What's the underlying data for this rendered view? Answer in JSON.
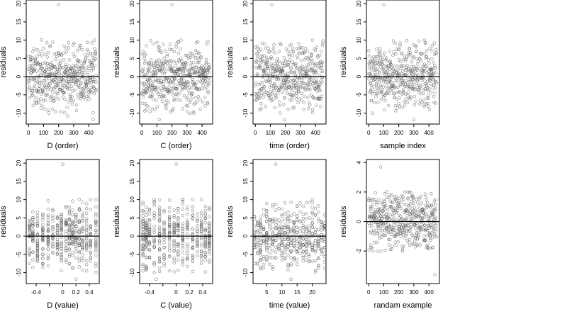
{
  "chart_data": [
    {
      "type": "scatter",
      "xlabel": "D (order)",
      "ylabel": "residuals",
      "xlim": [
        -15,
        470
      ],
      "ylim": [
        -13,
        21
      ],
      "xticks": [
        0,
        100,
        200,
        300,
        400
      ],
      "yticks": [
        -10,
        -5,
        0,
        5,
        10,
        15,
        20
      ],
      "hline": 0,
      "grid": false,
      "n_points": 460,
      "outliers": [
        {
          "x": 200,
          "y": 19.7
        },
        {
          "x": 430,
          "y": -11.8
        },
        {
          "x": 260,
          "y": -10.8
        }
      ],
      "noise_sd": 4.3,
      "seed": 11
    },
    {
      "type": "scatter",
      "xlabel": "C (order)",
      "ylabel": "residuals",
      "xlim": [
        -15,
        470
      ],
      "ylim": [
        -13,
        21
      ],
      "xticks": [
        0,
        100,
        200,
        300,
        400
      ],
      "yticks": [
        -10,
        -5,
        0,
        5,
        10,
        15,
        20
      ],
      "hline": 0,
      "grid": false,
      "n_points": 460,
      "outliers": [
        {
          "x": 200,
          "y": 19.7
        },
        {
          "x": 115,
          "y": -11.8
        },
        {
          "x": 260,
          "y": 10.0
        }
      ],
      "noise_sd": 4.3,
      "seed": 23
    },
    {
      "type": "scatter",
      "xlabel": "time (order)",
      "ylabel": "residuals",
      "xlim": [
        -15,
        470
      ],
      "ylim": [
        -13,
        21
      ],
      "xticks": [
        0,
        100,
        200,
        300,
        400
      ],
      "yticks": [
        -10,
        -5,
        0,
        5,
        10,
        15,
        20
      ],
      "hline": 0,
      "grid": false,
      "n_points": 460,
      "outliers": [
        {
          "x": 110,
          "y": 19.7
        },
        {
          "x": 195,
          "y": -11.8
        },
        {
          "x": 380,
          "y": 10.0
        }
      ],
      "noise_sd": 4.3,
      "seed": 37
    },
    {
      "type": "scatter",
      "xlabel": "sample index",
      "ylabel": "residuals",
      "xlim": [
        -15,
        470
      ],
      "ylim": [
        -13,
        21
      ],
      "xticks": [
        0,
        100,
        200,
        300,
        400
      ],
      "yticks": [
        -10,
        -5,
        0,
        5,
        10,
        15,
        20
      ],
      "hline": 0,
      "grid": false,
      "n_points": 460,
      "outliers": [
        {
          "x": 100,
          "y": 19.7
        },
        {
          "x": 300,
          "y": -11.8
        },
        {
          "x": 370,
          "y": 10.0
        }
      ],
      "noise_sd": 4.3,
      "seed": 41
    },
    {
      "type": "scatter",
      "xlabel": "D (value)",
      "ylabel": "residuals",
      "xlim": [
        -0.55,
        0.55
      ],
      "ylim": [
        -13,
        21
      ],
      "xticks": [
        -0.4,
        -0.2,
        0.0,
        0.2,
        0.4
      ],
      "xticks_labeled": [
        -0.4,
        0.0,
        0.2,
        0.4
      ],
      "yticks": [
        -10,
        -5,
        0,
        5,
        10,
        15,
        20
      ],
      "hline": 0,
      "grid": false,
      "n_points": 460,
      "x_levels": [
        -0.5,
        -0.45,
        -0.38,
        -0.3,
        -0.22,
        -0.15,
        -0.08,
        -0.02,
        0.05,
        0.1,
        0.15,
        0.2,
        0.25,
        0.3,
        0.36,
        0.42,
        0.5
      ],
      "outliers": [
        {
          "x": 0.0,
          "y": 19.7
        },
        {
          "x": 0.2,
          "y": -11.8
        },
        {
          "x": 0.25,
          "y": 10.0
        }
      ],
      "noise_sd": 4.3,
      "seed": 53
    },
    {
      "type": "scatter",
      "xlabel": "C (value)",
      "ylabel": "residuals",
      "xlim": [
        -0.55,
        0.55
      ],
      "ylim": [
        -13,
        21
      ],
      "xticks": [
        -0.4,
        -0.2,
        0.0,
        0.2,
        0.4
      ],
      "xticks_labeled": [
        -0.4,
        0.0,
        0.2,
        0.4
      ],
      "yticks": [
        -10,
        -5,
        0,
        5,
        10,
        15,
        20
      ],
      "hline": 0,
      "grid": false,
      "n_points": 460,
      "x_levels": [
        -0.5,
        -0.45,
        -0.4,
        -0.33,
        -0.25,
        -0.18,
        -0.1,
        -0.03,
        0.03,
        0.1,
        0.17,
        0.25,
        0.32,
        0.38,
        0.44,
        0.5
      ],
      "outliers": [
        {
          "x": 0.0,
          "y": 19.7
        },
        {
          "x": -0.3,
          "y": -11.8
        },
        {
          "x": 0.1,
          "y": 10.0
        }
      ],
      "noise_sd": 4.3,
      "seed": 67
    },
    {
      "type": "scatter",
      "xlabel": "time (value)",
      "ylabel": "residuals",
      "xlim": [
        0.5,
        24.5
      ],
      "ylim": [
        -13,
        21
      ],
      "xticks": [
        5,
        10,
        15,
        20
      ],
      "yticks": [
        -10,
        -5,
        0,
        5,
        10,
        15,
        20
      ],
      "hline": 0,
      "grid": false,
      "n_points": 460,
      "x_levels": [
        1,
        2,
        3,
        4,
        5,
        6,
        7,
        8,
        9,
        10,
        11,
        12,
        13,
        14,
        15,
        16,
        17,
        18,
        19,
        20,
        21,
        22,
        23,
        24
      ],
      "outliers": [
        {
          "x": 8,
          "y": 19.7
        },
        {
          "x": 13,
          "y": -11.8
        },
        {
          "x": 20,
          "y": 10.0
        }
      ],
      "noise_sd": 4.3,
      "seed": 79
    },
    {
      "type": "scatter",
      "xlabel": "randam example",
      "ylabel": "residuals",
      "xlim": [
        -15,
        470
      ],
      "ylim": [
        -4.2,
        4.2
      ],
      "xticks": [
        0,
        100,
        200,
        300,
        400
      ],
      "yticks": [
        -2,
        0,
        2,
        4
      ],
      "hline": 0,
      "grid": false,
      "n_points": 460,
      "outliers": [
        {
          "x": 80,
          "y": 3.7
        },
        {
          "x": 440,
          "y": -3.6
        }
      ],
      "noise_sd": 1.0,
      "seed": 97
    }
  ]
}
